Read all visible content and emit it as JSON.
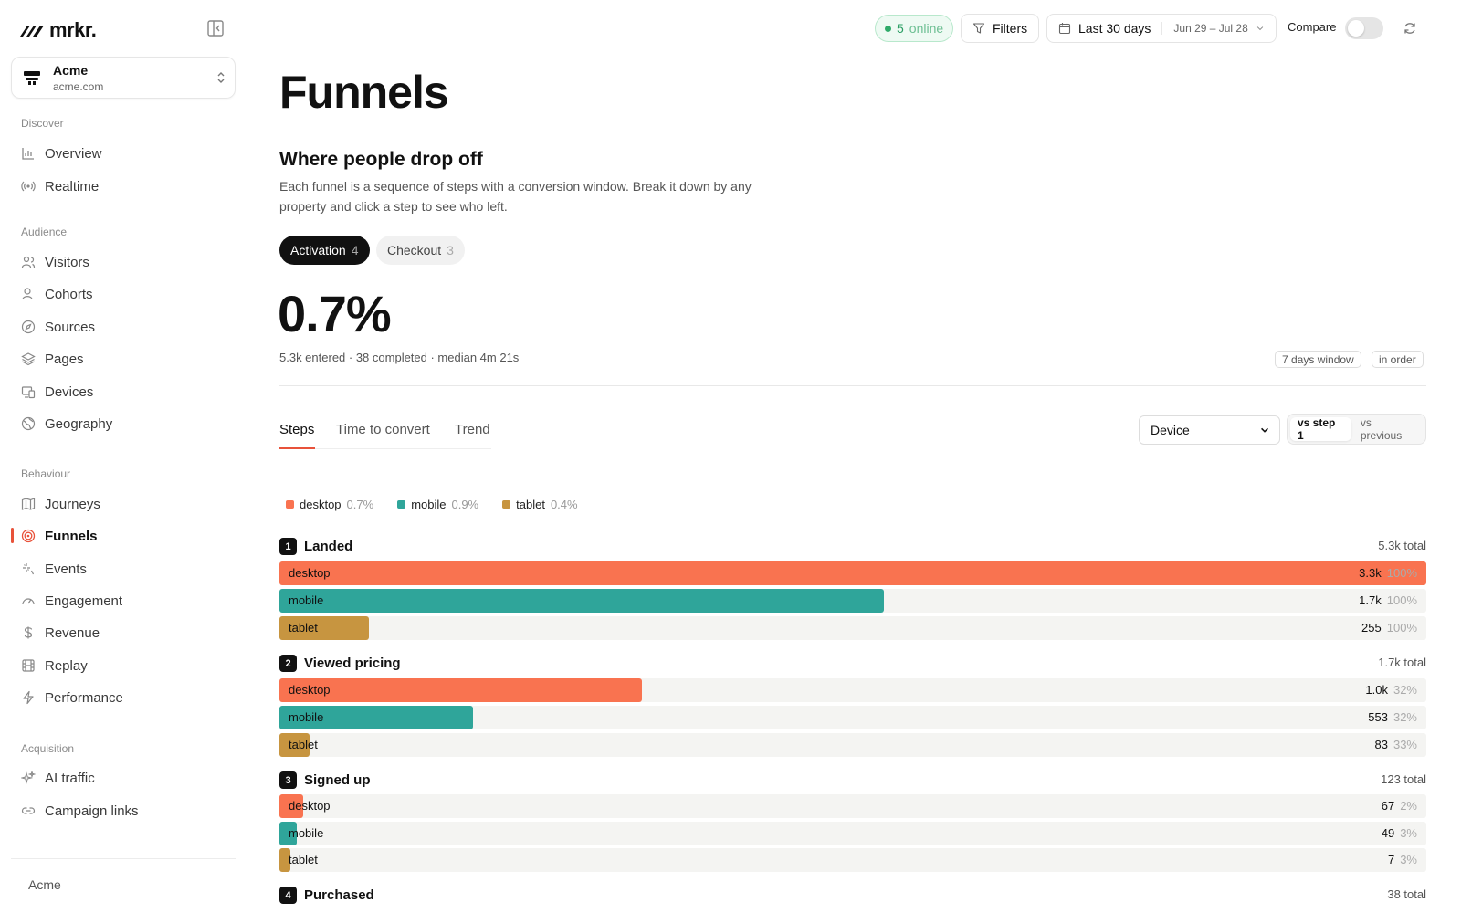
{
  "brand": {
    "name": "mrkr."
  },
  "org": {
    "name": "Acme",
    "domain": "acme.com"
  },
  "sidebar": {
    "sections": [
      {
        "label": "Discover"
      },
      {
        "label": "Audience"
      },
      {
        "label": "Behaviour"
      },
      {
        "label": "Acquisition"
      }
    ],
    "items": [
      {
        "label": "Overview",
        "icon": "bar-chart-icon"
      },
      {
        "label": "Realtime",
        "icon": "broadcast-icon"
      },
      {
        "label": "Visitors",
        "icon": "users-icon"
      },
      {
        "label": "Cohorts",
        "icon": "user-group-icon"
      },
      {
        "label": "Sources",
        "icon": "compass-icon"
      },
      {
        "label": "Pages",
        "icon": "layers-icon"
      },
      {
        "label": "Devices",
        "icon": "devices-icon"
      },
      {
        "label": "Geography",
        "icon": "globe-icon"
      },
      {
        "label": "Journeys",
        "icon": "map-icon"
      },
      {
        "label": "Funnels",
        "icon": "target-icon",
        "active": true
      },
      {
        "label": "Events",
        "icon": "sparkle-icon"
      },
      {
        "label": "Engagement",
        "icon": "gauge-icon"
      },
      {
        "label": "Revenue",
        "icon": "dollar-icon"
      },
      {
        "label": "Replay",
        "icon": "film-icon"
      },
      {
        "label": "Performance",
        "icon": "bolt-icon"
      },
      {
        "label": "AI traffic",
        "icon": "ai-sparkle-icon"
      },
      {
        "label": "Campaign links",
        "icon": "link-icon"
      }
    ],
    "footer_org": "Acme"
  },
  "topbar": {
    "online_count": "5",
    "online_label": "online",
    "filters_label": "Filters",
    "range_label": "Last 30 days",
    "range_dates": "Jun 29 – Jul 28",
    "compare_label": "Compare",
    "compare_on": false
  },
  "page": {
    "title": "Funnels",
    "subtitle": "Where people drop off",
    "description": "Each funnel is a sequence of steps with a conversion window. Break it down by any property and click a step to see who left."
  },
  "funnel_tabs": [
    {
      "label": "Activation",
      "count": "4",
      "active": true
    },
    {
      "label": "Checkout",
      "count": "3",
      "active": false
    }
  ],
  "summary": {
    "conversion": "0.7%",
    "detail": "5.3k entered · 38 completed · median 4m 21s",
    "window_chip": "7 days window",
    "order_chip": "in order"
  },
  "view_tabs": [
    {
      "label": "Steps",
      "active": true
    },
    {
      "label": "Time to convert",
      "active": false
    },
    {
      "label": "Trend",
      "active": false
    }
  ],
  "breakdown": {
    "selected": "Device"
  },
  "compare_mode": [
    {
      "label": "vs step 1",
      "active": true
    },
    {
      "label": "vs previous",
      "active": false
    }
  ],
  "colors": {
    "desktop": "#f97350",
    "mobile": "#2fa59a",
    "tablet": "#c79540",
    "accent": "#e8523a"
  },
  "legend": [
    {
      "name": "desktop",
      "pct": "0.7%"
    },
    {
      "name": "mobile",
      "pct": "0.9%"
    },
    {
      "name": "tablet",
      "pct": "0.4%"
    }
  ],
  "steps": [
    {
      "num": "1",
      "name": "Landed",
      "total": "5.3k total",
      "rows": [
        {
          "segment": "desktop",
          "value": "3.3k",
          "pct": "100%",
          "fill": 1.0
        },
        {
          "segment": "mobile",
          "value": "1.7k",
          "pct": "100%",
          "fill": 0.527
        },
        {
          "segment": "tablet",
          "value": "255",
          "pct": "100%",
          "fill": 0.078
        }
      ]
    },
    {
      "num": "2",
      "name": "Viewed pricing",
      "total": "1.7k total",
      "rows": [
        {
          "segment": "desktop",
          "value": "1.0k",
          "pct": "32%",
          "fill": 0.316
        },
        {
          "segment": "mobile",
          "value": "553",
          "pct": "32%",
          "fill": 0.169
        },
        {
          "segment": "tablet",
          "value": "83",
          "pct": "33%",
          "fill": 0.026
        }
      ]
    },
    {
      "num": "3",
      "name": "Signed up",
      "total": "123 total",
      "rows": [
        {
          "segment": "desktop",
          "value": "67",
          "pct": "2%",
          "fill": 0.021
        },
        {
          "segment": "mobile",
          "value": "49",
          "pct": "3%",
          "fill": 0.015
        },
        {
          "segment": "tablet",
          "value": "7",
          "pct": "3%",
          "fill": 0.009
        }
      ]
    },
    {
      "num": "4",
      "name": "Purchased",
      "total": "38 total",
      "rows": []
    }
  ]
}
